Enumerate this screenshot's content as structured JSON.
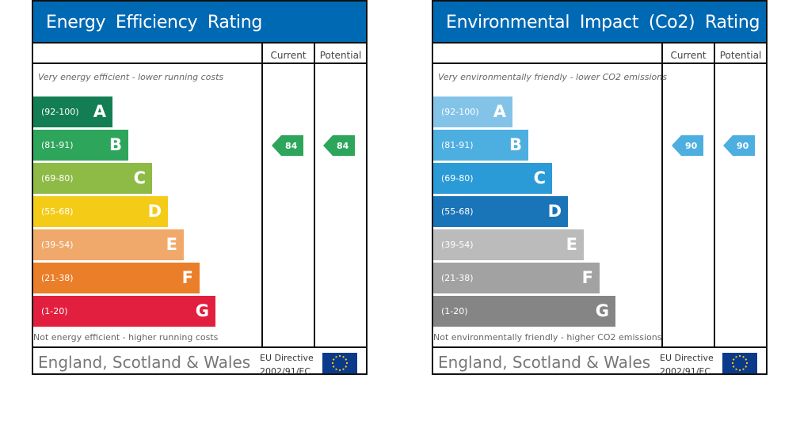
{
  "chart_data": [
    {
      "type": "bar",
      "title": "Energy Efficiency Rating",
      "columns": [
        "Current",
        "Potential"
      ],
      "top_note": "Very energy efficient - lower running costs",
      "bottom_note": "Not energy efficient - higher running costs",
      "categories": [
        {
          "range": "(92-100)",
          "letter": "A",
          "color": "#137e54"
        },
        {
          "range": "(81-91)",
          "letter": "B",
          "color": "#2da55b"
        },
        {
          "range": "(69-80)",
          "letter": "C",
          "color": "#8dbb45"
        },
        {
          "range": "(55-68)",
          "letter": "D",
          "color": "#f4cc17"
        },
        {
          "range": "(39-54)",
          "letter": "E",
          "color": "#f0a96b"
        },
        {
          "range": "(21-38)",
          "letter": "F",
          "color": "#eb7e28"
        },
        {
          "range": "(1-20)",
          "letter": "G",
          "color": "#e21f3e"
        }
      ],
      "current": 84,
      "potential": 84,
      "current_band": "B",
      "potential_band": "B",
      "arrow_color": "#2da55b",
      "region": "England, Scotland & Wales",
      "directive": [
        "EU Directive",
        "2002/91/EC"
      ]
    },
    {
      "type": "bar",
      "title": "Environmental Impact (Co2) Rating",
      "columns": [
        "Current",
        "Potential"
      ],
      "top_note": "Very environmentally friendly - lower CO2 emissions",
      "bottom_note": "Not environmentally friendly - higher CO2 emissions",
      "categories": [
        {
          "range": "(92-100)",
          "letter": "A",
          "color": "#84c3e8"
        },
        {
          "range": "(81-91)",
          "letter": "B",
          "color": "#4daee0"
        },
        {
          "range": "(69-80)",
          "letter": "C",
          "color": "#2a9bd6"
        },
        {
          "range": "(55-68)",
          "letter": "D",
          "color": "#1a74b8"
        },
        {
          "range": "(39-54)",
          "letter": "E",
          "color": "#bbbbbb"
        },
        {
          "range": "(21-38)",
          "letter": "F",
          "color": "#a2a2a2"
        },
        {
          "range": "(1-20)",
          "letter": "G",
          "color": "#858585"
        }
      ],
      "current": 90,
      "potential": 90,
      "current_band": "B",
      "potential_band": "B",
      "arrow_color": "#4daee0",
      "region": "England, Scotland & Wales",
      "directive": [
        "EU Directive",
        "2002/91/EC"
      ]
    }
  ]
}
